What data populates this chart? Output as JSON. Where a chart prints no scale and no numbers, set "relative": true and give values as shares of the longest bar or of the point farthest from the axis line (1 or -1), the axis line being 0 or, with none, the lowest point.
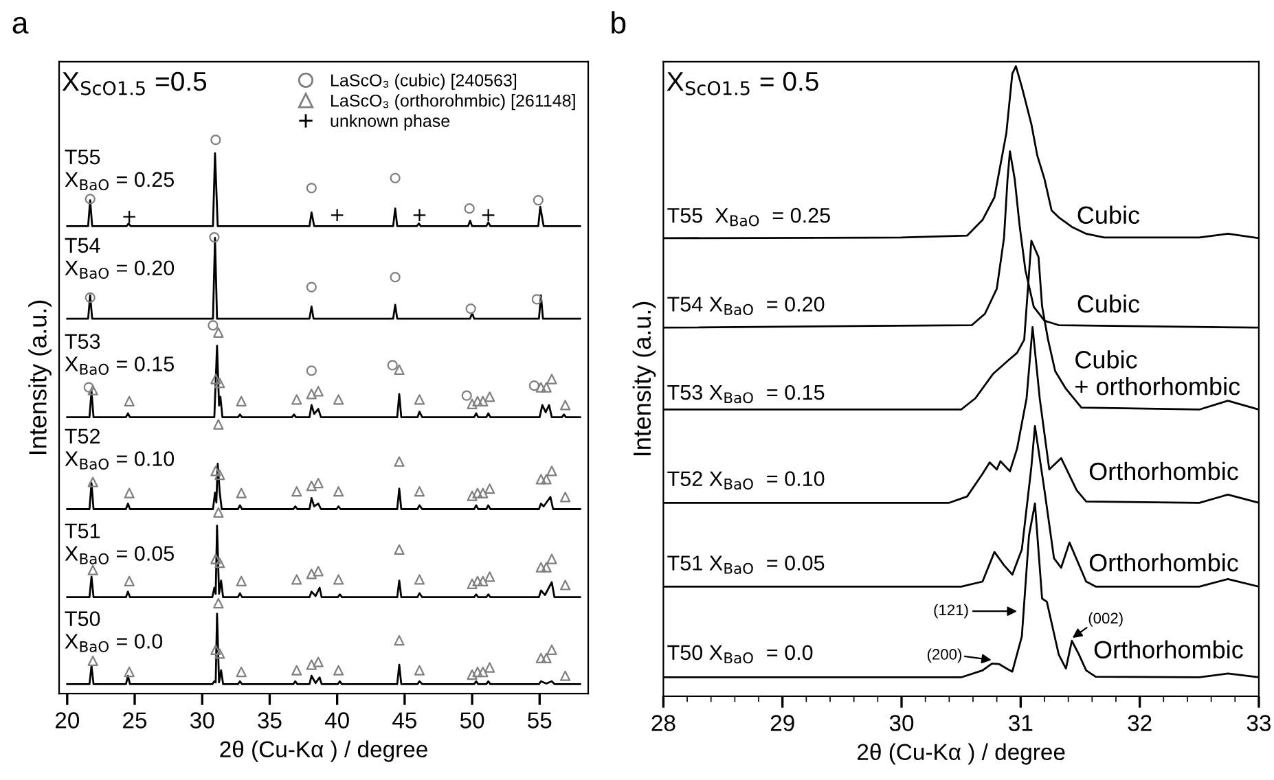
{
  "chart_data": [
    {
      "type": "line",
      "title": "a",
      "xlabel": "2θ (Cu-Kα ) / degree",
      "ylabel": "Intensity (a.u.)",
      "relative": true,
      "legend": "top right",
      "xlim": [
        19.4,
        58.6
      ],
      "xticks": [
        20,
        25,
        30,
        35,
        40,
        45,
        50,
        55
      ],
      "annotations": [
        "X$_{ScO1.5}$ =0.5",
        "T55\nX$_{BaO}$ = 0.25",
        "T54\nX$_{BaO}$ = 0.20",
        "T53\nX$_{BaO}$ = 0.15",
        "T52\nX$_{BaO}$ = 0.10",
        "T51\nX$_{BaO}$ = 0.05",
        "T50\nX$_{BaO}$ = 0.0"
      ],
      "series": [
        {
          "color": "#000000",
          "x": [
            20,
            21.55,
            21.7,
            21.85,
            24.4,
            24.55,
            24.7,
            30.8,
            30.95,
            31.15,
            37.95,
            38.1,
            38.3,
            44.15,
            44.3,
            44.45,
            45.9,
            46.05,
            46.2,
            49.7,
            49.85,
            50.0,
            51.05,
            51.2,
            51.35,
            54.9,
            55.05,
            55.3,
            58
          ],
          "values": [
            0.844,
            0.844,
            0.891,
            0.844,
            0.844,
            0.849,
            0.844,
            0.844,
            0.976,
            0.844,
            0.844,
            0.869,
            0.844,
            0.844,
            0.876,
            0.844,
            0.844,
            0.849,
            0.844,
            0.844,
            0.854,
            0.844,
            0.844,
            0.851,
            0.844,
            0.844,
            0.879,
            0.844,
            0.844
          ]
        },
        {
          "color": "#000000",
          "x": [
            20,
            21.55,
            21.7,
            21.85,
            30.8,
            30.95,
            31.1,
            37.95,
            38.1,
            38.25,
            44.15,
            44.3,
            44.45,
            49.85,
            50.0,
            50.15,
            54.95,
            55.1,
            55.25,
            58
          ],
          "values": [
            0.677,
            0.677,
            0.719,
            0.677,
            0.677,
            0.823,
            0.677,
            0.677,
            0.699,
            0.677,
            0.677,
            0.702,
            0.677,
            0.677,
            0.687,
            0.677,
            0.677,
            0.719,
            0.677,
            0.677
          ]
        },
        {
          "color": "#000000",
          "x": [
            20,
            21.65,
            21.8,
            21.95,
            24.35,
            24.5,
            24.65,
            30.9,
            31.1,
            31.25,
            31.35,
            31.5,
            32.65,
            32.8,
            32.95,
            36.65,
            36.8,
            36.95,
            37.95,
            38.1,
            38.3,
            38.6,
            38.8,
            44.45,
            44.6,
            44.75,
            45.95,
            46.1,
            46.3,
            50.15,
            50.3,
            50.45,
            51.05,
            51.2,
            51.35,
            55.0,
            55.2,
            55.45,
            55.7,
            55.9,
            56.65,
            56.8,
            56.95,
            58
          ],
          "values": [
            0.499,
            0.499,
            0.546,
            0.499,
            0.499,
            0.506,
            0.499,
            0.499,
            0.628,
            0.52,
            0.536,
            0.499,
            0.499,
            0.504,
            0.499,
            0.499,
            0.504,
            0.499,
            0.499,
            0.521,
            0.505,
            0.514,
            0.499,
            0.499,
            0.541,
            0.499,
            0.499,
            0.509,
            0.499,
            0.499,
            0.506,
            0.499,
            0.499,
            0.506,
            0.499,
            0.499,
            0.521,
            0.508,
            0.521,
            0.499,
            0.499,
            0.504,
            0.499,
            0.499
          ]
        },
        {
          "color": "#000000",
          "x": [
            20,
            21.65,
            21.8,
            21.95,
            24.35,
            24.5,
            24.65,
            30.8,
            30.95,
            31.05,
            31.15,
            31.3,
            31.45,
            32.65,
            32.8,
            32.95,
            36.75,
            36.9,
            37.05,
            37.95,
            38.1,
            38.3,
            38.6,
            38.8,
            39.95,
            40.1,
            40.25,
            44.45,
            44.6,
            44.75,
            45.95,
            46.1,
            46.3,
            50.15,
            50.3,
            50.45,
            51.05,
            51.2,
            51.35,
            54.95,
            55.1,
            55.3,
            55.8,
            56.0,
            58
          ],
          "values": [
            0.333,
            0.333,
            0.38,
            0.333,
            0.333,
            0.343,
            0.333,
            0.333,
            0.363,
            0.345,
            0.415,
            0.363,
            0.333,
            0.333,
            0.34,
            0.333,
            0.333,
            0.338,
            0.333,
            0.333,
            0.353,
            0.338,
            0.343,
            0.333,
            0.333,
            0.338,
            0.333,
            0.333,
            0.37,
            0.333,
            0.333,
            0.34,
            0.333,
            0.333,
            0.34,
            0.333,
            0.333,
            0.34,
            0.333,
            0.333,
            0.343,
            0.338,
            0.355,
            0.333,
            0.333
          ]
        },
        {
          "color": "#000000",
          "x": [
            20,
            21.65,
            21.8,
            21.95,
            24.35,
            24.5,
            24.65,
            30.75,
            30.9,
            31.0,
            31.1,
            31.25,
            31.4,
            31.55,
            32.65,
            32.8,
            32.95,
            37.95,
            38.1,
            38.4,
            38.7,
            38.85,
            40.05,
            40.2,
            40.35,
            44.45,
            44.6,
            44.75,
            45.95,
            46.1,
            46.3,
            50.15,
            50.3,
            50.45,
            51.05,
            51.2,
            51.35,
            54.95,
            55.1,
            55.4,
            55.9,
            56.1,
            58
          ],
          "values": [
            0.174,
            0.174,
            0.211,
            0.174,
            0.174,
            0.184,
            0.174,
            0.174,
            0.191,
            0.18,
            0.303,
            0.18,
            0.204,
            0.174,
            0.174,
            0.181,
            0.174,
            0.174,
            0.184,
            0.176,
            0.191,
            0.174,
            0.174,
            0.179,
            0.174,
            0.174,
            0.204,
            0.174,
            0.174,
            0.181,
            0.174,
            0.174,
            0.179,
            0.174,
            0.174,
            0.179,
            0.174,
            0.174,
            0.186,
            0.178,
            0.201,
            0.174,
            0.174
          ]
        },
        {
          "color": "#000000",
          "x": [
            20,
            21.65,
            21.8,
            21.95,
            24.35,
            24.5,
            24.65,
            30.75,
            30.9,
            31.0,
            31.1,
            31.25,
            31.4,
            31.55,
            32.65,
            32.8,
            32.95,
            36.75,
            36.9,
            37.05,
            37.95,
            38.1,
            38.4,
            38.7,
            38.85,
            40.05,
            40.2,
            40.35,
            44.45,
            44.6,
            44.75,
            45.95,
            46.1,
            46.3,
            50.15,
            50.3,
            50.45,
            51.05,
            51.2,
            51.35,
            54.95,
            55.1,
            55.5,
            55.9,
            56.1,
            58
          ],
          "values": [
            0.017,
            0.017,
            0.05,
            0.017,
            0.017,
            0.032,
            0.017,
            0.017,
            0.022,
            0.02,
            0.144,
            0.02,
            0.042,
            0.017,
            0.017,
            0.022,
            0.017,
            0.017,
            0.022,
            0.017,
            0.017,
            0.032,
            0.019,
            0.029,
            0.017,
            0.017,
            0.022,
            0.017,
            0.017,
            0.052,
            0.017,
            0.017,
            0.022,
            0.017,
            0.017,
            0.022,
            0.017,
            0.017,
            0.022,
            0.017,
            0.017,
            0.022,
            0.018,
            0.022,
            0.017,
            0.017
          ]
        },
        {
          "type": "scatter",
          "name": "LaScO₃ (cubic) [240563]",
          "marker": "circle",
          "color": "#7f7f7f",
          "x": [
            21.7,
            31.0,
            38.1,
            44.3,
            49.8,
            54.9,
            21.7,
            30.9,
            38.1,
            44.3,
            49.9,
            54.8,
            21.6,
            30.8,
            38.1,
            44.1,
            49.6,
            54.6
          ],
          "values": [
            0.893,
            1.0,
            0.913,
            0.931,
            0.876,
            0.891,
            0.715,
            0.824,
            0.734,
            0.752,
            0.695,
            0.712,
            0.553,
            0.665,
            0.583,
            0.593,
            0.538,
            0.556
          ]
        },
        {
          "type": "scatter",
          "name": "LaScO₃ (orthorohmbic) [261148]",
          "marker": "triangle",
          "color": "#7f7f7f",
          "x": [
            21.9,
            24.6,
            31.0,
            31.2,
            31.3,
            32.9,
            37.0,
            38.1,
            38.6,
            40.1,
            44.6,
            46.1,
            50.0,
            50.4,
            50.8,
            51.3,
            55.1,
            55.5,
            55.9,
            56.9,
            21.9,
            24.6,
            31.0,
            31.2,
            31.3,
            32.9,
            37.0,
            38.1,
            38.6,
            40.1,
            44.6,
            46.1,
            50.0,
            50.4,
            50.8,
            51.3,
            55.1,
            55.5,
            55.9,
            56.9,
            21.9,
            24.6,
            31.0,
            31.2,
            31.3,
            32.9,
            37.0,
            38.1,
            38.6,
            40.1,
            44.6,
            46.1,
            50.0,
            50.4,
            50.8,
            51.3,
            55.1,
            55.5,
            55.9,
            56.9,
            21.9,
            24.6,
            31.0,
            31.2,
            31.3,
            32.9,
            37.0,
            38.1,
            38.6,
            40.1,
            44.6,
            46.1,
            50.0,
            50.4,
            50.8,
            51.3,
            55.1,
            55.5,
            55.9,
            56.9
          ],
          "values": [
            0.548,
            0.528,
            0.568,
            0.652,
            0.561,
            0.528,
            0.531,
            0.541,
            0.546,
            0.531,
            0.585,
            0.531,
            0.523,
            0.528,
            0.528,
            0.536,
            0.553,
            0.553,
            0.568,
            0.521,
            0.382,
            0.362,
            0.402,
            0.486,
            0.395,
            0.362,
            0.365,
            0.375,
            0.38,
            0.365,
            0.419,
            0.365,
            0.357,
            0.362,
            0.362,
            0.37,
            0.387,
            0.387,
            0.402,
            0.355,
            0.223,
            0.203,
            0.243,
            0.327,
            0.236,
            0.203,
            0.206,
            0.216,
            0.221,
            0.206,
            0.26,
            0.206,
            0.198,
            0.203,
            0.203,
            0.211,
            0.228,
            0.228,
            0.243,
            0.196,
            0.059,
            0.039,
            0.079,
            0.163,
            0.072,
            0.039,
            0.042,
            0.052,
            0.057,
            0.042,
            0.096,
            0.042,
            0.034,
            0.039,
            0.039,
            0.047,
            0.064,
            0.064,
            0.079,
            0.032
          ]
        },
        {
          "type": "scatter",
          "name": "unknown phase",
          "marker": "cross",
          "color": "#000000",
          "x": [
            24.6,
            40.0,
            46.1,
            51.2
          ],
          "values": [
            0.861,
            0.864,
            0.864,
            0.864
          ]
        }
      ]
    },
    {
      "type": "line",
      "title": "b",
      "xlabel": "2θ (Cu-Kα ) / degree",
      "ylabel": "Intensity (a.u.)",
      "relative": true,
      "xlim": [
        28,
        33
      ],
      "xticks": [
        28,
        {
          "value": 28.2,
          "label": null
        },
        {
          "value": 28.4,
          "label": null
        },
        {
          "value": 28.6,
          "label": null
        },
        {
          "value": 28.8,
          "label": null
        },
        29,
        {
          "value": 29.2,
          "label": null
        },
        {
          "value": 29.4,
          "label": null
        },
        {
          "value": 29.6,
          "label": null
        },
        {
          "value": 29.8,
          "label": null
        },
        30,
        {
          "value": 30.2,
          "label": null
        },
        {
          "value": 30.4,
          "label": null
        },
        {
          "value": 30.6,
          "label": null
        },
        {
          "value": 30.8,
          "label": null
        },
        31,
        {
          "value": 31.2,
          "label": null
        },
        {
          "value": 31.4,
          "label": null
        },
        {
          "value": 31.6,
          "label": null
        },
        {
          "value": 31.8,
          "label": null
        },
        32,
        {
          "value": 32.2,
          "label": null
        },
        {
          "value": 32.4,
          "label": null
        },
        {
          "value": 32.6,
          "label": null
        },
        {
          "value": 32.8,
          "label": null
        },
        33
      ],
      "annotations": [
        "X$_{ScO1.5}$ = 0.5",
        "T55  X$_{BaO}$  = 0.25",
        "T54 X$_{BaO}$  = 0.20",
        "T53 X$_{BaO}$  = 0.15",
        "T52 X$_{BaO}$  = 0.10",
        "T51 X$_{BaO}$  = 0.05",
        "T50 X$_{BaO}$  = 0.0",
        "Cubic",
        "Cubic",
        "Cubic\n+ orthorhombic",
        "Orthorhombic",
        "Orthorhombic",
        "Orthorhombic",
        "(121)",
        "(200)",
        "(002)"
      ],
      "series": [
        {
          "color": "#000000",
          "x": [
            28,
            30.0,
            30.55,
            30.68,
            30.78,
            30.88,
            30.93,
            30.96,
            31.01,
            31.09,
            31.14,
            31.2,
            31.26,
            31.32,
            31.43,
            31.55,
            31.7,
            32.5,
            32.74,
            33
          ],
          "values": [
            0.727,
            0.728,
            0.731,
            0.756,
            0.792,
            0.894,
            0.988,
            1.0,
            0.967,
            0.908,
            0.858,
            0.821,
            0.771,
            0.76,
            0.745,
            0.734,
            0.728,
            0.728,
            0.734,
            0.727
          ]
        },
        {
          "color": "#000000",
          "x": [
            28,
            30.59,
            30.7,
            30.8,
            30.86,
            30.89,
            30.91,
            30.95,
            30.99,
            31.04,
            31.11,
            31.2,
            31.32,
            33
          ],
          "values": [
            0.585,
            0.589,
            0.607,
            0.647,
            0.727,
            0.821,
            0.865,
            0.821,
            0.749,
            0.676,
            0.618,
            0.596,
            0.589,
            0.585
          ]
        },
        {
          "color": "#000000",
          "x": [
            28,
            30.5,
            30.62,
            30.77,
            30.89,
            30.97,
            31.03,
            31.09,
            31.15,
            31.18,
            31.23,
            31.29,
            31.38,
            31.51,
            32.5,
            32.74,
            33
          ],
          "values": [
            0.455,
            0.455,
            0.473,
            0.512,
            0.532,
            0.545,
            0.566,
            0.723,
            0.697,
            0.619,
            0.566,
            0.516,
            0.488,
            0.458,
            0.455,
            0.469,
            0.455
          ]
        },
        {
          "color": "#000000",
          "x": [
            28,
            30.4,
            30.55,
            30.68,
            30.74,
            30.8,
            30.83,
            30.91,
            30.97,
            31.05,
            31.1,
            31.16,
            31.24,
            31.34,
            31.47,
            31.55,
            32.5,
            32.74,
            33
          ],
          "values": [
            0.307,
            0.307,
            0.317,
            0.353,
            0.371,
            0.36,
            0.373,
            0.357,
            0.393,
            0.473,
            0.586,
            0.473,
            0.36,
            0.378,
            0.327,
            0.309,
            0.307,
            0.32,
            0.307
          ]
        },
        {
          "color": "#000000",
          "x": [
            28,
            30.5,
            30.68,
            30.78,
            30.86,
            30.93,
            31.01,
            31.09,
            31.12,
            31.2,
            31.28,
            31.34,
            31.41,
            31.55,
            31.63,
            32.5,
            32.74,
            33
          ],
          "values": [
            0.174,
            0.174,
            0.182,
            0.229,
            0.208,
            0.193,
            0.233,
            0.364,
            0.429,
            0.327,
            0.219,
            0.204,
            0.244,
            0.182,
            0.174,
            0.174,
            0.186,
            0.174
          ]
        },
        {
          "color": "#000000",
          "x": [
            28,
            30.5,
            30.68,
            30.76,
            30.82,
            30.89,
            30.93,
            31.01,
            31.07,
            31.12,
            31.18,
            31.22,
            31.32,
            31.38,
            31.43,
            31.49,
            31.55,
            31.63,
            32.5,
            32.74,
            33
          ],
          "values": [
            0.03,
            0.03,
            0.041,
            0.052,
            0.051,
            0.043,
            0.039,
            0.095,
            0.255,
            0.306,
            0.155,
            0.15,
            0.066,
            0.044,
            0.088,
            0.066,
            0.041,
            0.031,
            0.03,
            0.036,
            0.03
          ]
        }
      ]
    }
  ]
}
